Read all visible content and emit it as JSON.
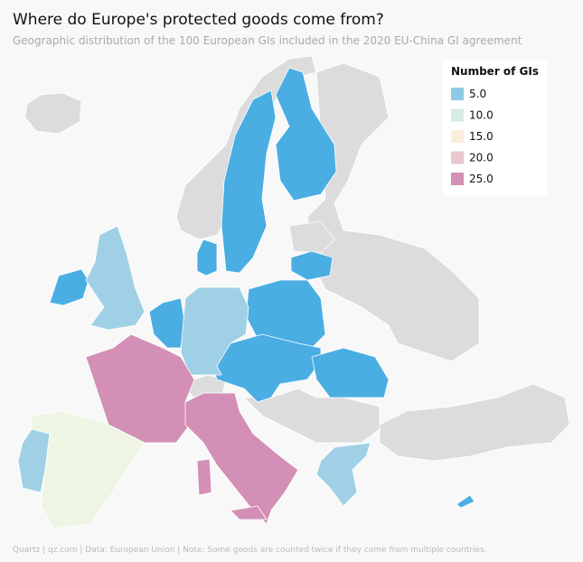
{
  "header": {
    "title": "Where do Europe's protected goods come from?",
    "subtitle": "Geographic distribution of the 100 European GIs included in the 2020 EU-China GI agreement"
  },
  "legend": {
    "title": "Number of GIs",
    "items": [
      {
        "value": 5,
        "label": "5.0",
        "color": "#8ccae6"
      },
      {
        "value": 10,
        "label": "10.0",
        "color": "#d5ebe6"
      },
      {
        "value": 15,
        "label": "15.0",
        "color": "#f8eedb"
      },
      {
        "value": 20,
        "label": "20.0",
        "color": "#e9c8d0"
      },
      {
        "value": 25,
        "label": "25.0",
        "color": "#d38fb5"
      }
    ]
  },
  "regions": [
    {
      "value": 2,
      "color": "#4aaee3"
    },
    {
      "value": 7,
      "color": "#9fd0e6"
    },
    {
      "value": 12,
      "color": "#eef6e3"
    },
    {
      "value": 26,
      "color": "#d38fb5"
    }
  ],
  "footer": "Quartz | qz.com | Data: European Union | Note: Some goods are counted twice if they come from multiple countries."
}
